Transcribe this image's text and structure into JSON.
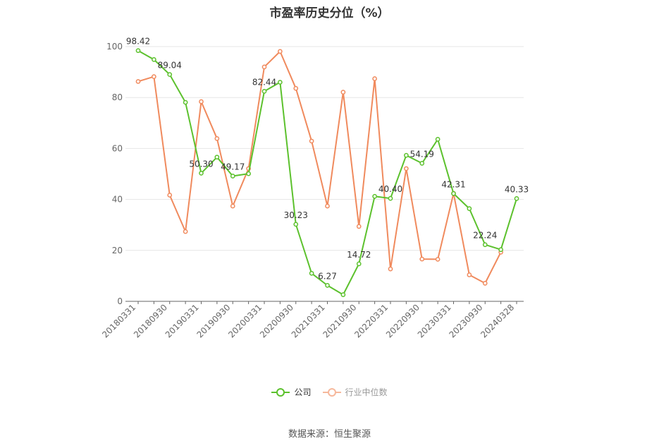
{
  "chart_data": {
    "type": "line",
    "title": "市盈率历史分位（%）",
    "source": "数据来源：恒生聚源",
    "ylim": [
      0,
      100
    ],
    "yticks": [
      0,
      20,
      40,
      60,
      80,
      100
    ],
    "grid": true,
    "legend_position": "bottom",
    "x": [
      "20180331",
      "20180630",
      "20180930",
      "20181231",
      "20190331",
      "20190630",
      "20190930",
      "20191231",
      "20200331",
      "20200630",
      "20200930",
      "20201231",
      "20210331",
      "20210630",
      "20210930",
      "20211231",
      "20220331",
      "20220630",
      "20220930",
      "20221231",
      "20230331",
      "20230630",
      "20230930",
      "20231231",
      "20240328"
    ],
    "xtick_labels": [
      "20180331",
      "20180930",
      "20190331",
      "20190930",
      "20200331",
      "20200930",
      "20210331",
      "20210930",
      "20220331",
      "20220930",
      "20230331",
      "20230930",
      "20240328"
    ],
    "series": [
      {
        "name": "公司",
        "color": "#5cc12d",
        "values": [
          98.42,
          94.9,
          89.04,
          78.1,
          50.3,
          56.6,
          49.17,
          50.1,
          82.44,
          86.0,
          30.23,
          11.0,
          6.27,
          2.6,
          14.72,
          41.2,
          40.4,
          57.3,
          54.19,
          63.6,
          42.31,
          36.4,
          22.24,
          20.3,
          40.33
        ],
        "labels": {
          "0": "98.42",
          "2": "89.04",
          "4": "50.30",
          "6": "49.17",
          "8": "82.44",
          "10": "30.23",
          "12": "6.27",
          "14": "14.72",
          "16": "40.40",
          "18": "54.19",
          "20": "42.31",
          "22": "22.24",
          "24": "40.33"
        }
      },
      {
        "name": "行业中位数",
        "color": "#f08a5d",
        "values": [
          86.3,
          88.2,
          41.7,
          27.4,
          78.4,
          63.9,
          37.4,
          52.1,
          92.0,
          98.1,
          83.6,
          62.9,
          37.4,
          82.1,
          29.4,
          87.4,
          12.7,
          52.1,
          16.6,
          16.5,
          42.4,
          10.4,
          7.1,
          19.3,
          null
        ]
      }
    ]
  }
}
